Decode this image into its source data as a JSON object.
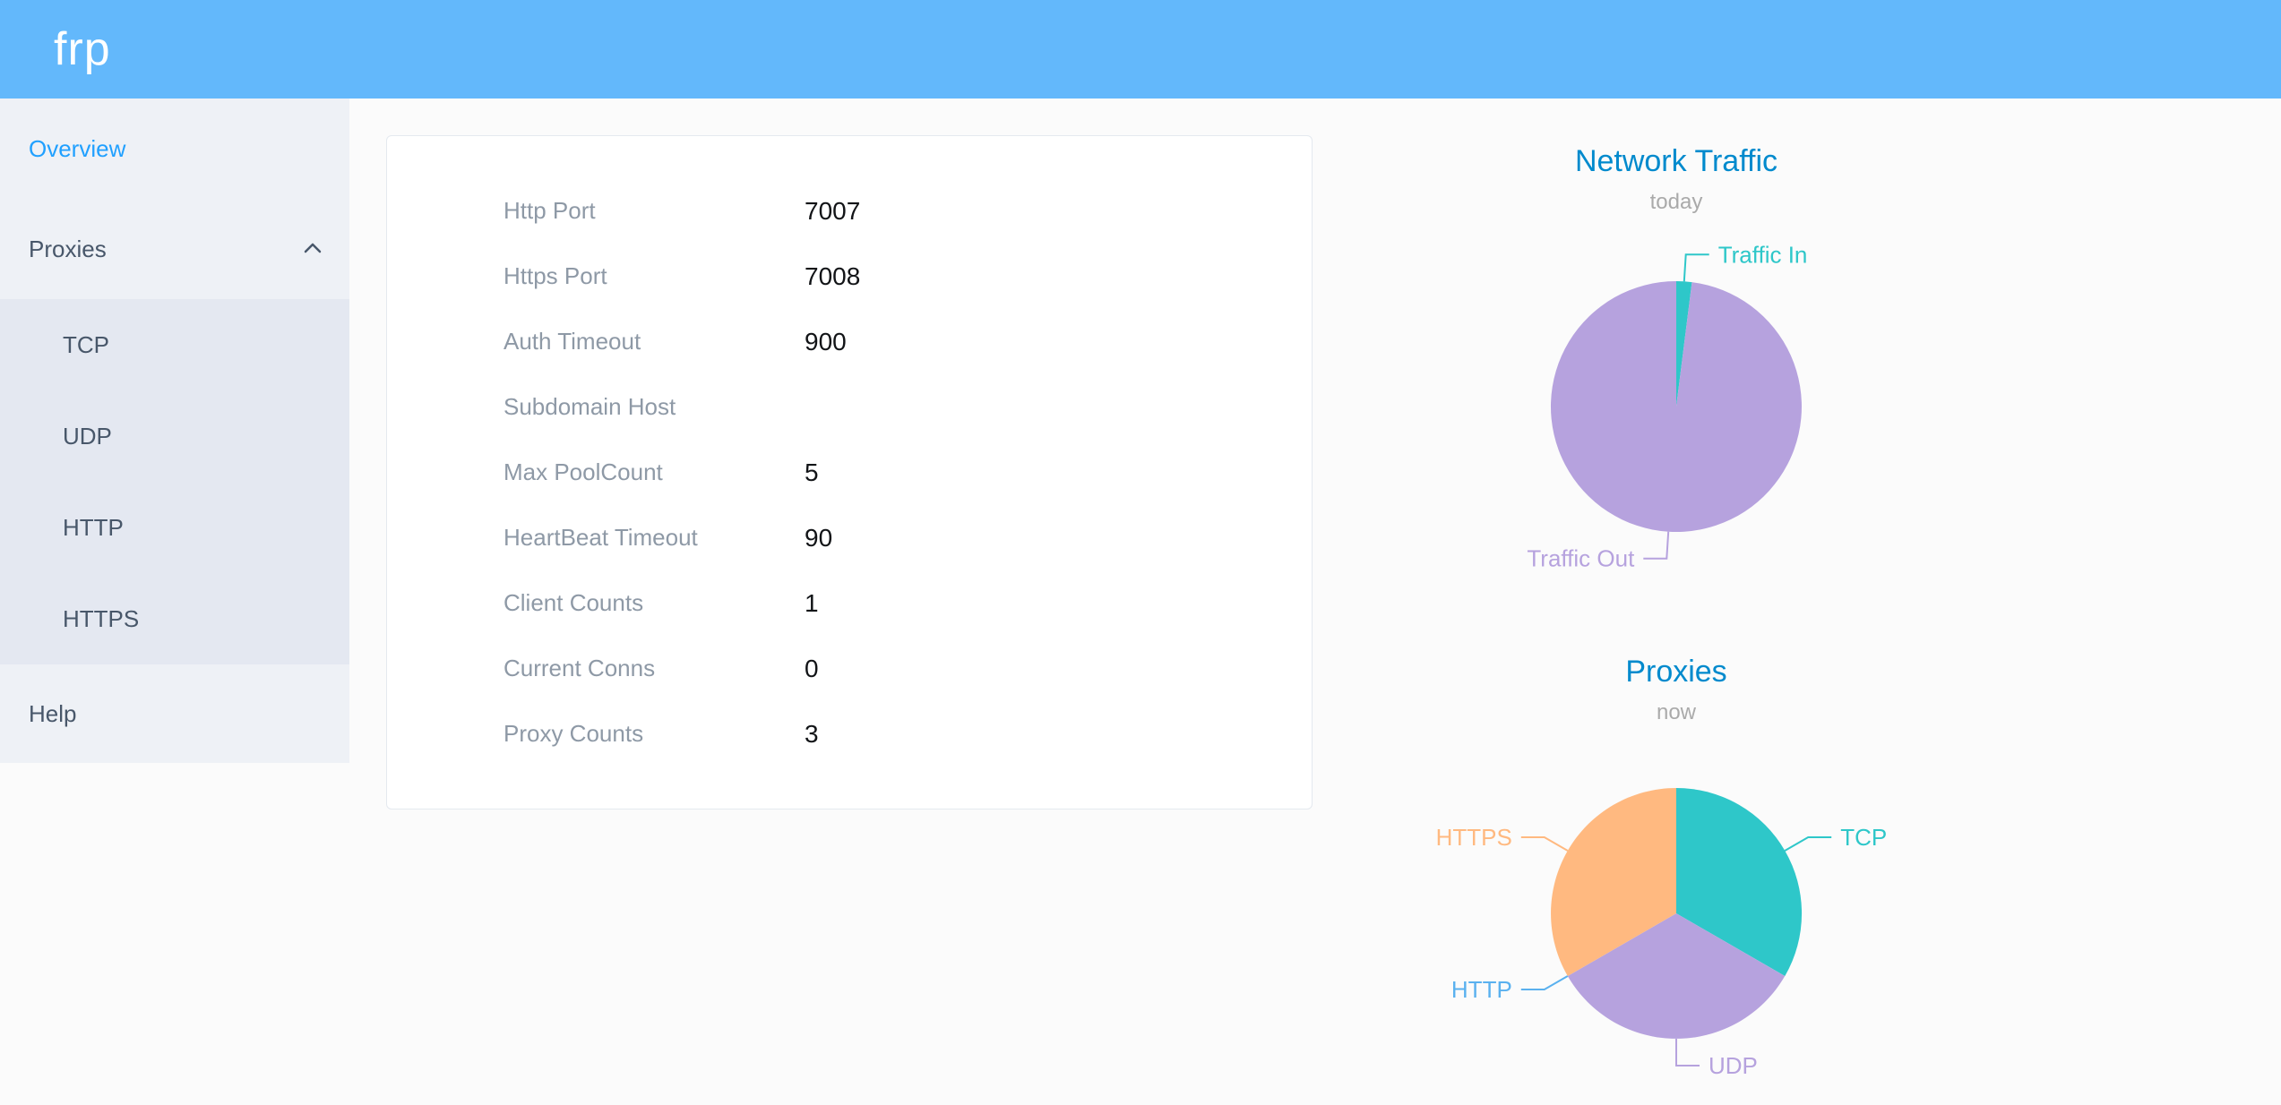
{
  "app": {
    "title": "frp"
  },
  "colors": {
    "header_bg": "#63b8fb",
    "sidebar_bg": "#eef1f6",
    "submenu_bg": "#e4e8f1",
    "active_link": "#20a0ff",
    "menu_text": "#48576a",
    "chart_title": "#008acd"
  },
  "sidebar": {
    "overview_label": "Overview",
    "proxies_label": "Proxies",
    "proxy_types": [
      "TCP",
      "UDP",
      "HTTP",
      "HTTPS"
    ],
    "help_label": "Help"
  },
  "overview": {
    "rows": [
      {
        "label": "Http Port",
        "value": "7007"
      },
      {
        "label": "Https Port",
        "value": "7008"
      },
      {
        "label": "Auth Timeout",
        "value": "900"
      },
      {
        "label": "Subdomain Host",
        "value": ""
      },
      {
        "label": "Max PoolCount",
        "value": "5"
      },
      {
        "label": "HeartBeat Timeout",
        "value": "90"
      },
      {
        "label": "Client Counts",
        "value": "1"
      },
      {
        "label": "Current Conns",
        "value": "0"
      },
      {
        "label": "Proxy Counts",
        "value": "3"
      }
    ]
  },
  "chart_data": [
    {
      "type": "pie",
      "title": "Network Traffic",
      "subtitle": "today",
      "legend_position": "callout-labels",
      "series": [
        {
          "name": "Traffic In",
          "value": 2,
          "color": "#2ec7c9"
        },
        {
          "name": "Traffic Out",
          "value": 98,
          "color": "#b6a2de"
        }
      ]
    },
    {
      "type": "pie",
      "title": "Proxies",
      "subtitle": "now",
      "legend_position": "callout-labels",
      "series": [
        {
          "name": "TCP",
          "value": 1,
          "color": "#2ec7c9"
        },
        {
          "name": "UDP",
          "value": 1,
          "color": "#b6a2de"
        },
        {
          "name": "HTTP",
          "value": 0,
          "color": "#5ab1ef"
        },
        {
          "name": "HTTPS",
          "value": 1,
          "color": "#ffb980"
        }
      ]
    }
  ]
}
